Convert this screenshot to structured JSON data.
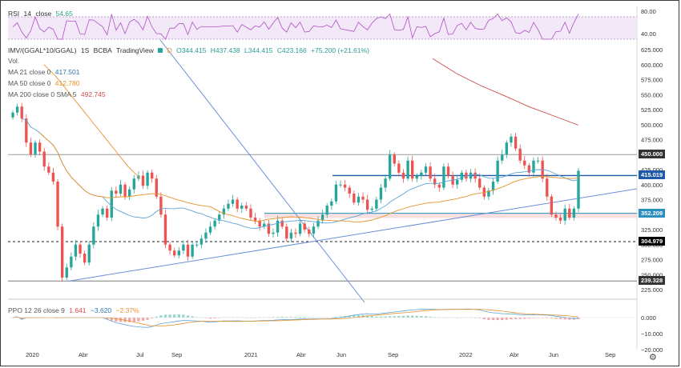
{
  "rsi_legend": {
    "name": "RSI",
    "len": "14",
    "src": "close",
    "value": "54.65"
  },
  "main_legend": {
    "symbol": "IMV/(GGAL*10/GGAL)",
    "interval": "1S",
    "exchange": "BCBA",
    "source": "TradingView",
    "d_badge": "D",
    "o": "O344.415",
    "h": "H437.438",
    "l": "L344.415",
    "c": "C423.166",
    "chg": "+75.200 (+21.61%)",
    "vol": "Vol."
  },
  "ma21": {
    "label": "MA 21 close 0",
    "value": "417.501"
  },
  "ma50": {
    "label": "MA 50 close 0",
    "value": "412.780"
  },
  "ma200": {
    "label": "MA 200 close 0 SMA 5",
    "value": "492.745"
  },
  "ppo_legend": {
    "label": "PPO 12 26 close 9",
    "v1": "1.641",
    "v2": "−3.620",
    "v3": "−2.37%"
  },
  "colors": {
    "up": "#26a69a",
    "down": "#ef5350",
    "ma21": "#5aa5d6",
    "ma50": "#e8912a",
    "ma200": "#d24b4b",
    "trend": "#6a8fd8"
  },
  "chart_data": {
    "type": "candlestick",
    "price_axis": [
      "625.000",
      "600.000",
      "575.000",
      "550.000",
      "525.000",
      "500.000",
      "475.000",
      "450.000",
      "425.000",
      "400.000",
      "375.000",
      "350.000",
      "325.000",
      "300.000",
      "275.000",
      "250.000",
      "225.000"
    ],
    "rsi_axis": [
      "80.00",
      "40.00"
    ],
    "ppo_axis": [
      "0.000",
      "−10.000",
      "−20.000"
    ],
    "time_axis": [
      "2020",
      "Abr",
      "Jul",
      "Sep",
      "2021",
      "Abr",
      "Jun",
      "Sep",
      "2022",
      "Abr",
      "Jun",
      "Sep"
    ],
    "price_badges": [
      {
        "label": "450.000",
        "color": "#333333"
      },
      {
        "label": "415.019",
        "color": "#1e5aa8"
      },
      {
        "label": "352.209",
        "color": "#2a8fbf"
      },
      {
        "label": "304.979",
        "color": "#000000"
      },
      {
        "label": "239.328",
        "color": "#333333"
      }
    ],
    "closes": [
      520,
      530,
      510,
      470,
      450,
      470,
      455,
      430,
      420,
      405,
      330,
      245,
      262,
      280,
      300,
      285,
      270,
      300,
      330,
      350,
      360,
      345,
      390,
      385,
      400,
      380,
      392,
      410,
      415,
      398,
      420,
      410,
      380,
      350,
      300,
      290,
      282,
      290,
      300,
      280,
      300,
      300,
      310,
      320,
      330,
      340,
      350,
      360,
      368,
      375,
      360,
      365,
      360,
      345,
      340,
      330,
      335,
      318,
      320,
      340,
      330,
      310,
      320,
      318,
      335,
      325,
      318,
      330,
      340,
      350,
      365,
      372,
      400,
      400,
      395,
      385,
      370,
      380,
      375,
      358,
      360,
      375,
      395,
      410,
      450,
      435,
      420,
      410,
      440,
      410,
      415,
      420,
      430,
      410,
      400,
      395,
      430,
      415,
      400,
      408,
      420,
      410,
      420,
      410,
      395,
      380,
      390,
      405,
      440,
      450,
      470,
      480,
      460,
      440,
      432,
      420,
      440,
      440,
      410,
      380,
      350,
      345,
      340,
      360,
      345,
      360,
      423
    ]
  }
}
